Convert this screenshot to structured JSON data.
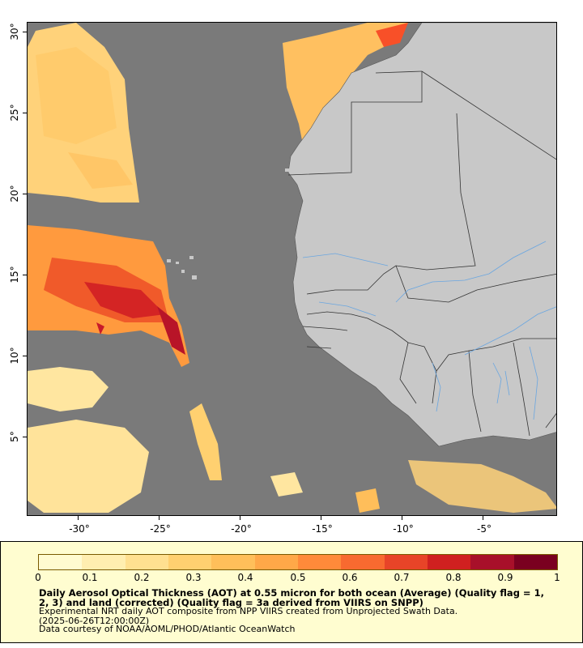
{
  "map": {
    "x_axis_labels": [
      "-30°",
      "-25°",
      "-20°",
      "-15°",
      "-10°",
      "-5°"
    ],
    "y_axis_labels": [
      "30°",
      "25°",
      "20°",
      "15°",
      "10°",
      "5°"
    ],
    "colors": {
      "ocean_nodata": "#7a7a7a",
      "land": "#c8c8c8",
      "rivers": "#6aa6e0",
      "borders": "#333333"
    }
  },
  "legend": {
    "colorbar_ticks": [
      "0",
      "0.1",
      "0.2",
      "0.3",
      "0.4",
      "0.5",
      "0.6",
      "0.7",
      "0.8",
      "0.9",
      "1"
    ],
    "colorbar_range": [
      0,
      1
    ],
    "colorbar_colors": [
      "#fffbd0",
      "#ffeeb0",
      "#ffe090",
      "#ffd070",
      "#ffbf5a",
      "#ffa848",
      "#ff8a3a",
      "#f86a30",
      "#e84428",
      "#d02020",
      "#a8102a",
      "#7a0020"
    ],
    "title": "Daily Aerosol Optical Thickness (AOT) at 0.55 micron for both ocean (Average) (Quality flag = 1, 2, 3) and land (corrected) (Quality flag = 3a derived from VIIRS on SNPP)",
    "line1": "Experimental NRT daily AOT composite from NPP VIIRS created from Unprojected Swath Data.",
    "line2": "(2025-06-26T12:00:00Z)",
    "line3": "Data courtesy of NOAA/AOML/PHOD/Atlantic OceanWatch"
  }
}
